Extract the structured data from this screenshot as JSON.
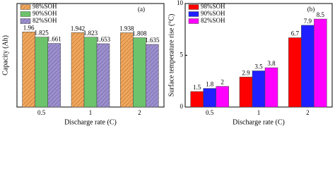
{
  "chart_data": [
    {
      "type": "bar",
      "title": "(a)",
      "xlabel": "Discharge rate (C)",
      "ylabel": "Capacity (Ah)",
      "categories": [
        "0.5",
        "1",
        "2"
      ],
      "ylim": [
        0,
        2.7
      ],
      "legend": "top-left",
      "hatch": true,
      "series": [
        {
          "name": "98%SOH",
          "color": "#f2a65a",
          "values": [
            1.96,
            1.942,
            1.938
          ]
        },
        {
          "name": "90%SOH",
          "color": "#6cc36c",
          "values": [
            1.825,
            1.823,
            1.808
          ]
        },
        {
          "name": "82%SOH",
          "color": "#9c8fd0",
          "values": [
            1.661,
            1.653,
            1.635
          ]
        }
      ]
    },
    {
      "type": "bar",
      "title": "(b)",
      "xlabel": "Discharge rate (C)",
      "ylabel": "Surface temperature rise (°C)",
      "categories": [
        "0.5",
        "1",
        "2"
      ],
      "ylim": [
        0,
        10
      ],
      "yticks": [
        0,
        5,
        10
      ],
      "legend": "top-left",
      "hatch": false,
      "series": [
        {
          "name": "98%SOH",
          "color": "#ff0000",
          "values": [
            1.5,
            2.9,
            6.7
          ]
        },
        {
          "name": "90%SOH",
          "color": "#1f1fff",
          "values": [
            1.8,
            3.5,
            7.9
          ]
        },
        {
          "name": "82%SOH",
          "color": "#ff00ff",
          "values": [
            2,
            3.8,
            8.5
          ]
        }
      ]
    }
  ]
}
